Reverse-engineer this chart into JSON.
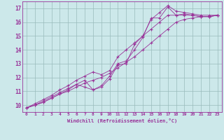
{
  "bg_color": "#cce8ea",
  "line_color": "#993399",
  "grid_color": "#99bbbb",
  "xlabel": "Windchill (Refroidissement éolien,°C)",
  "xlim": [
    -0.5,
    23.5
  ],
  "ylim": [
    9.5,
    17.5
  ],
  "yticks": [
    10,
    11,
    12,
    13,
    14,
    15,
    16,
    17
  ],
  "xticks": [
    0,
    1,
    2,
    3,
    4,
    5,
    6,
    7,
    8,
    9,
    10,
    11,
    12,
    13,
    14,
    15,
    16,
    17,
    18,
    19,
    20,
    21,
    22,
    23
  ],
  "series": [
    {
      "x": [
        0,
        1,
        2,
        3,
        4,
        5,
        6,
        7,
        8,
        9,
        10,
        11,
        12,
        13,
        14,
        15,
        16,
        17,
        18,
        19,
        20,
        21,
        22,
        23
      ],
      "y": [
        9.8,
        10.0,
        10.2,
        10.5,
        10.8,
        11.1,
        11.5,
        11.8,
        11.1,
        11.4,
        12.1,
        13.0,
        13.2,
        14.0,
        14.9,
        16.3,
        16.3,
        17.1,
        16.5,
        16.6,
        16.5,
        16.4,
        16.4,
        16.5
      ]
    },
    {
      "x": [
        0,
        1,
        2,
        3,
        4,
        5,
        6,
        7,
        8,
        9,
        10,
        11,
        12,
        13,
        14,
        15,
        16,
        17,
        18,
        19,
        20,
        21,
        22,
        23
      ],
      "y": [
        9.8,
        10.0,
        10.3,
        10.6,
        10.9,
        11.2,
        11.5,
        11.3,
        11.1,
        11.3,
        11.9,
        12.9,
        13.0,
        14.4,
        15.0,
        16.2,
        16.7,
        17.2,
        16.8,
        16.7,
        16.6,
        16.5,
        16.5,
        16.5
      ]
    },
    {
      "x": [
        0,
        1,
        2,
        3,
        4,
        5,
        6,
        7,
        8,
        9,
        10,
        11,
        12,
        13,
        14,
        15,
        16,
        17,
        18,
        19,
        20,
        21,
        22,
        23
      ],
      "y": [
        9.8,
        10.1,
        10.4,
        10.7,
        11.1,
        11.4,
        11.8,
        12.1,
        12.4,
        12.2,
        12.5,
        13.5,
        14.0,
        14.5,
        15.0,
        15.5,
        16.0,
        16.5,
        16.5,
        16.5,
        16.5,
        16.4,
        16.4,
        16.5
      ]
    },
    {
      "x": [
        0,
        1,
        2,
        3,
        4,
        5,
        6,
        7,
        8,
        9,
        10,
        11,
        12,
        13,
        14,
        15,
        16,
        17,
        18,
        19,
        20,
        21,
        22,
        23
      ],
      "y": [
        9.8,
        10.0,
        10.2,
        10.5,
        10.8,
        11.0,
        11.3,
        11.6,
        11.8,
        12.0,
        12.3,
        12.7,
        13.1,
        13.5,
        14.0,
        14.5,
        15.0,
        15.5,
        16.0,
        16.2,
        16.3,
        16.4,
        16.4,
        16.5
      ]
    }
  ]
}
